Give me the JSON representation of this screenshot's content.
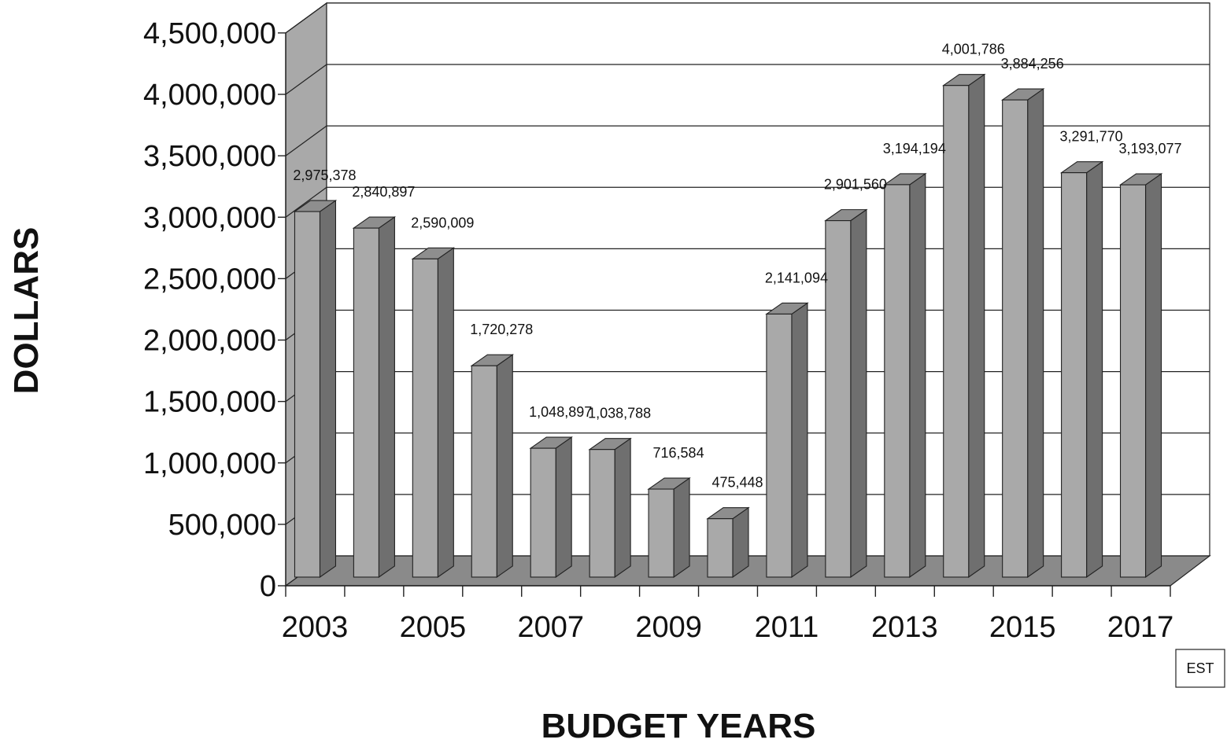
{
  "chart_data": {
    "type": "bar",
    "title": "",
    "xlabel": "BUDGET YEARS",
    "ylabel": "DOLLARS",
    "categories": [
      "2003",
      "2004",
      "2005",
      "2006",
      "2007",
      "2008",
      "2009",
      "2010",
      "2011",
      "2012",
      "2013",
      "2014",
      "2015",
      "2016",
      "2017"
    ],
    "x_tick_labels": [
      "2003",
      "2005",
      "2007",
      "2009",
      "2011",
      "2013",
      "2015",
      "2017"
    ],
    "values": [
      2975378,
      2840897,
      2590009,
      1720278,
      1048897,
      1038788,
      716584,
      475448,
      2141094,
      2901560,
      3194194,
      4001786,
      3884256,
      3291770,
      3193077
    ],
    "data_labels": [
      "2,975,378",
      "2,840,897",
      "2,590,009",
      "1,720,278",
      "1,048,897",
      "1,038,788",
      "716,584",
      "475,448",
      "2,141,094",
      "2,901,560",
      "3,194,194",
      "4,001,786",
      "3,884,256",
      "3,291,770",
      "3,193,077"
    ],
    "y_ticks": [
      0,
      500000,
      1000000,
      1500000,
      2000000,
      2500000,
      3000000,
      3500000,
      4000000,
      4500000
    ],
    "y_tick_labels": [
      "0",
      "500,000",
      "1,000,000",
      "1,500,000",
      "2,000,000",
      "2,500,000",
      "3,000,000",
      "3,500,000",
      "4,000,000",
      "4,500,000"
    ],
    "ylim": [
      0,
      4500000
    ],
    "grid": true,
    "style": "3d-bar",
    "colors": {
      "bar_front": "#a9a9a9",
      "bar_side": "#6f6f6f",
      "bar_top": "#8e8e8e",
      "wall": "#ffffff",
      "side_wall": "#a9a9a9",
      "floor": "#8a8a8a"
    },
    "note": "EST"
  }
}
